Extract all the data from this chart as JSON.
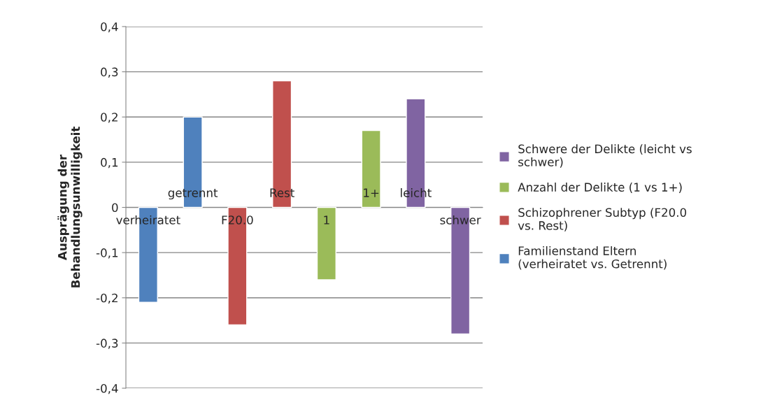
{
  "chart_data": {
    "type": "bar",
    "ylabel": "Ausprägung der\nBehandlungsunwilligkeit",
    "categories": [
      "verheiratet",
      "getrennt",
      "F20.0",
      "Rest",
      "1",
      "1+",
      "leicht",
      "schwer"
    ],
    "series": [
      {
        "name": "Schwere der Delikte (leicht vs\nschwer)",
        "color": "#8064a2",
        "values": [
          null,
          null,
          null,
          null,
          null,
          null,
          0.24,
          -0.28
        ]
      },
      {
        "name": "Anzahl der Delikte (1 vs 1+)",
        "color": "#9bbb59",
        "values": [
          null,
          null,
          null,
          null,
          -0.16,
          0.17,
          null,
          null
        ]
      },
      {
        "name": "Schizophrener Subtyp (F20.0\nvs. Rest)",
        "color": "#c0504d",
        "values": [
          null,
          null,
          -0.26,
          0.28,
          null,
          null,
          null,
          null
        ]
      },
      {
        "name": "Familienstand Eltern\n(verheiratet vs. Getrennt)",
        "color": "#4f81bd",
        "values": [
          -0.21,
          0.2,
          null,
          null,
          null,
          null,
          null,
          null
        ]
      }
    ],
    "ylim": [
      -0.4,
      0.4
    ],
    "yticks": [
      {
        "value": -0.4,
        "label": "-0,4"
      },
      {
        "value": -0.3,
        "label": "-0,3"
      },
      {
        "value": -0.2,
        "label": "-0,2"
      },
      {
        "value": -0.1,
        "label": "-0,1"
      },
      {
        "value": 0,
        "label": "0"
      },
      {
        "value": 0.1,
        "label": "0,1"
      },
      {
        "value": 0.2,
        "label": "0,2"
      },
      {
        "value": 0.3,
        "label": "0,3"
      },
      {
        "value": 0.4,
        "label": "0,4"
      }
    ],
    "grid": "y",
    "legend": "right"
  }
}
